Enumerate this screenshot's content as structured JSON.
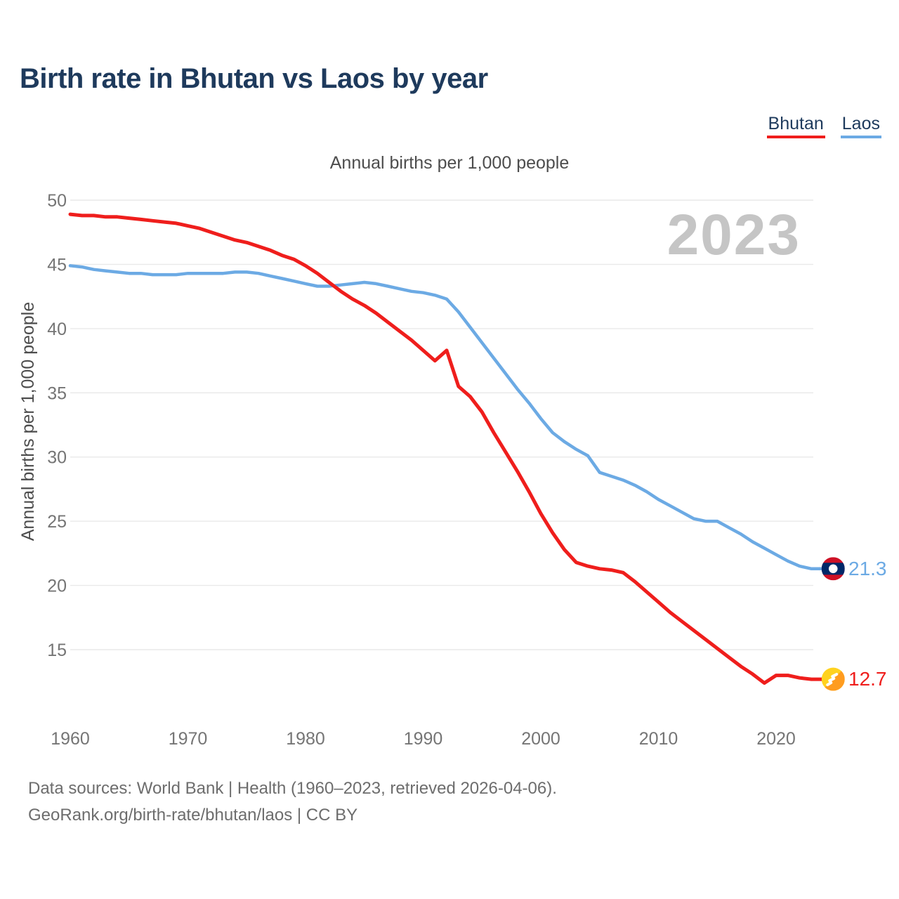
{
  "page": {
    "title": "Birth rate in Bhutan vs Laos by year",
    "subtitle": "Annual births per 1,000 people",
    "watermark": "2023",
    "y_axis_label": "Annual births per 1,000 people",
    "footer_line1": "Data sources: World Bank | Health (1960–2023, retrieved 2026-04-06).",
    "footer_line2": "GeoRank.org/birth-rate/bhutan/laos | CC BY"
  },
  "legend": {
    "items": [
      {
        "label": "Bhutan",
        "color": "#ef1e1c"
      },
      {
        "label": "Laos",
        "color": "#6caae4"
      }
    ]
  },
  "chart_data": {
    "type": "line",
    "title": "Birth rate in Bhutan vs Laos by year",
    "subtitle": "Annual births per 1,000 people",
    "ylabel": "Annual births per 1,000 people",
    "grid": "horizontal",
    "legend_position": "top-right",
    "ylim": [
      12,
      50
    ],
    "yticks": [
      15,
      20,
      25,
      30,
      35,
      40,
      45,
      50
    ],
    "xticks": [
      1960,
      1970,
      1980,
      1990,
      2000,
      2010,
      2020
    ],
    "x": [
      1960,
      1961,
      1962,
      1963,
      1964,
      1965,
      1966,
      1967,
      1968,
      1969,
      1970,
      1971,
      1972,
      1973,
      1974,
      1975,
      1976,
      1977,
      1978,
      1979,
      1980,
      1981,
      1982,
      1983,
      1984,
      1985,
      1986,
      1987,
      1988,
      1989,
      1990,
      1991,
      1992,
      1993,
      1994,
      1995,
      1996,
      1997,
      1998,
      1999,
      2000,
      2001,
      2002,
      2003,
      2004,
      2005,
      2006,
      2007,
      2008,
      2009,
      2010,
      2011,
      2012,
      2013,
      2014,
      2015,
      2016,
      2017,
      2018,
      2019,
      2020,
      2021,
      2022,
      2023
    ],
    "series": [
      {
        "name": "Bhutan",
        "color": "#ef1e1c",
        "marker": "bhutan-flag",
        "end_label": "12.7",
        "values": [
          48.9,
          48.8,
          48.8,
          48.7,
          48.7,
          48.6,
          48.5,
          48.4,
          48.3,
          48.2,
          48.0,
          47.8,
          47.5,
          47.2,
          46.9,
          46.7,
          46.4,
          46.1,
          45.7,
          45.4,
          44.9,
          44.3,
          43.6,
          42.9,
          42.3,
          41.8,
          41.2,
          40.5,
          39.8,
          39.1,
          38.3,
          37.5,
          38.3,
          35.5,
          34.7,
          33.5,
          31.9,
          30.4,
          28.9,
          27.3,
          25.6,
          24.1,
          22.8,
          21.8,
          21.5,
          21.3,
          21.2,
          21.0,
          20.3,
          19.5,
          18.7,
          17.9,
          17.2,
          16.5,
          15.8,
          15.1,
          14.4,
          13.7,
          13.1,
          12.4,
          13.0,
          13.0,
          12.8,
          12.7
        ]
      },
      {
        "name": "Laos",
        "color": "#6caae4",
        "marker": "laos-flag",
        "end_label": "21.3",
        "values": [
          44.9,
          44.8,
          44.6,
          44.5,
          44.4,
          44.3,
          44.3,
          44.2,
          44.2,
          44.2,
          44.3,
          44.3,
          44.3,
          44.3,
          44.4,
          44.4,
          44.3,
          44.1,
          43.9,
          43.7,
          43.5,
          43.3,
          43.3,
          43.4,
          43.5,
          43.6,
          43.5,
          43.3,
          43.1,
          42.9,
          42.8,
          42.6,
          42.3,
          41.3,
          40.1,
          38.9,
          37.7,
          36.5,
          35.3,
          34.2,
          33.0,
          31.9,
          31.2,
          30.6,
          30.1,
          28.8,
          28.5,
          28.2,
          27.8,
          27.3,
          26.7,
          26.2,
          25.7,
          25.2,
          25.0,
          25.0,
          24.5,
          24.0,
          23.4,
          22.9,
          22.4,
          21.9,
          21.5,
          21.3
        ]
      }
    ],
    "flag_colors": {
      "laos": {
        "red": "#ce1126",
        "blue": "#002868",
        "circle": "#ffffff"
      },
      "bhutan": {
        "yellow": "#ffd21f",
        "orange": "#ff9c1f",
        "dragon": "#ffffff"
      }
    }
  }
}
